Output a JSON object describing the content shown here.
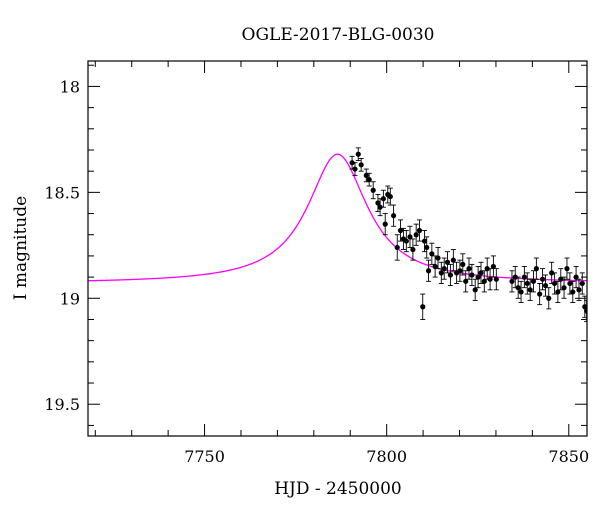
{
  "chart_data": {
    "type": "scatter",
    "title": "OGLE-2017-BLG-0030",
    "xlabel": "HJD - 2450000",
    "ylabel": "I magnitude",
    "xlim": [
      7718,
      7855
    ],
    "ylim": [
      19.65,
      17.88
    ],
    "y_inverted": true,
    "x_ticks": [
      7750,
      7800,
      7850
    ],
    "x_tick_labels": [
      "7750",
      "7800",
      "7850"
    ],
    "y_ticks": [
      18,
      18.5,
      19,
      19.5
    ],
    "y_tick_labels": [
      "18",
      "18.5",
      "19",
      "19.5"
    ],
    "grid": false,
    "colors": {
      "data": "#000000",
      "model": "#ff00ff"
    },
    "model": {
      "t0": 7786.5,
      "peak_mag": 18.32,
      "baseline_mag": 18.93,
      "width_days": 9.5
    },
    "series": [
      {
        "kind": "observations",
        "x": [
          7790.5,
          7791.3,
          7792.2,
          7793.0,
          7794.4,
          7795.2,
          7796.3,
          7797.6,
          7798.2,
          7799.1,
          7799.6,
          7800.3,
          7801.0,
          7801.9,
          7802.9,
          7803.8,
          7804.6,
          7805.4,
          7806.4,
          7807.2,
          7808.1,
          7809.0,
          7809.9,
          7810.4,
          7811.0,
          7811.5,
          7812.4,
          7813.3,
          7814.1,
          7815.0,
          7815.8,
          7816.7,
          7817.5,
          7818.3,
          7819.2,
          7820.1,
          7820.9,
          7821.7,
          7822.6,
          7823.4,
          7824.3,
          7825.1,
          7825.9,
          7826.8,
          7827.6,
          7828.4,
          7829.3,
          7830.1,
          7834.4,
          7835.3,
          7836.1,
          7836.9,
          7837.8,
          7838.6,
          7839.4,
          7840.3,
          7841.1,
          7842.0,
          7842.8,
          7843.6,
          7844.5,
          7845.3,
          7846.1,
          7847.0,
          7847.8,
          7848.7,
          7849.5,
          7850.3,
          7851.1,
          7852.0,
          7852.8,
          7853.7,
          7854.4,
          7854.9
        ],
        "y": [
          18.36,
          18.39,
          18.32,
          18.37,
          18.42,
          18.44,
          18.49,
          18.55,
          18.57,
          18.53,
          18.65,
          18.51,
          18.52,
          18.61,
          18.76,
          18.68,
          18.72,
          18.73,
          18.71,
          18.77,
          18.7,
          18.68,
          19.04,
          18.73,
          18.76,
          18.87,
          18.79,
          18.85,
          18.81,
          18.88,
          18.86,
          18.83,
          18.89,
          18.82,
          18.88,
          18.87,
          18.84,
          18.92,
          18.86,
          18.89,
          18.96,
          18.9,
          18.88,
          18.92,
          18.86,
          18.91,
          18.85,
          18.91,
          18.92,
          18.9,
          18.95,
          18.97,
          18.9,
          18.93,
          18.96,
          18.92,
          18.86,
          18.98,
          18.91,
          18.94,
          19.0,
          18.88,
          18.93,
          18.97,
          18.91,
          18.95,
          18.86,
          18.93,
          18.97,
          18.9,
          18.96,
          18.93,
          19.04,
          19.06
        ],
        "yerr": [
          0.03,
          0.03,
          0.03,
          0.03,
          0.03,
          0.03,
          0.04,
          0.04,
          0.04,
          0.04,
          0.05,
          0.04,
          0.04,
          0.05,
          0.06,
          0.05,
          0.05,
          0.05,
          0.05,
          0.05,
          0.05,
          0.05,
          0.06,
          0.05,
          0.05,
          0.05,
          0.05,
          0.05,
          0.05,
          0.05,
          0.05,
          0.05,
          0.05,
          0.05,
          0.05,
          0.05,
          0.05,
          0.05,
          0.05,
          0.05,
          0.05,
          0.05,
          0.05,
          0.05,
          0.05,
          0.05,
          0.05,
          0.05,
          0.05,
          0.05,
          0.05,
          0.05,
          0.05,
          0.05,
          0.05,
          0.05,
          0.05,
          0.05,
          0.05,
          0.05,
          0.05,
          0.05,
          0.05,
          0.05,
          0.05,
          0.05,
          0.05,
          0.05,
          0.05,
          0.05,
          0.05,
          0.05,
          0.05,
          0.05
        ]
      }
    ]
  }
}
